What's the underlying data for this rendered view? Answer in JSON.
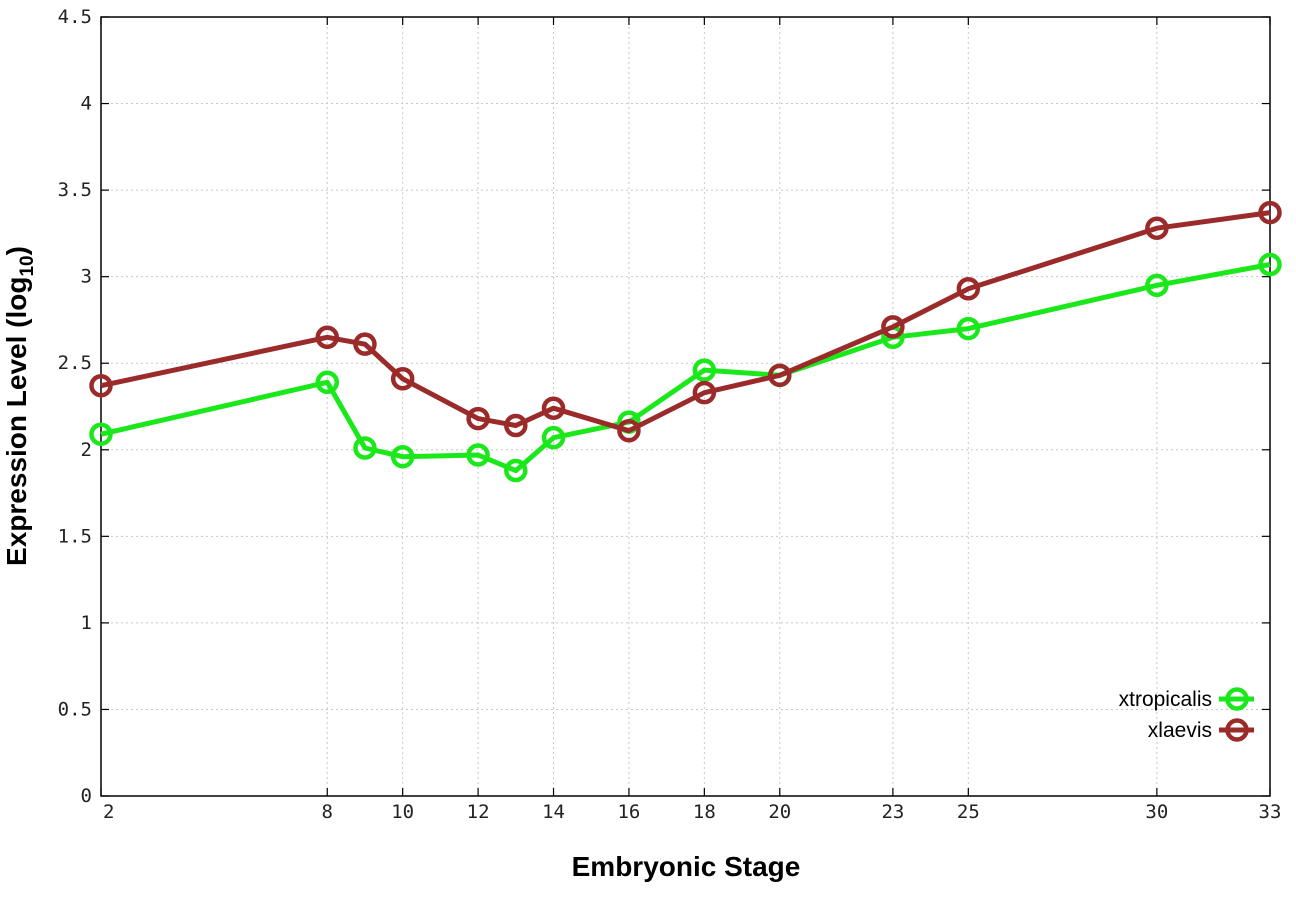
{
  "chart_data": {
    "type": "line",
    "xlabel": "Embryonic Stage",
    "ylabel_main": "Expression Level (log",
    "ylabel_sub": "10",
    "ylabel_end": ")",
    "xlim": [
      2,
      33
    ],
    "ylim": [
      0,
      4.5
    ],
    "grid": true,
    "legend_position": "bottom-right",
    "x_ticks": [
      "2",
      "8",
      "10",
      "12",
      "14",
      "16",
      "18",
      "20",
      "23",
      "25",
      "30",
      "33"
    ],
    "y_ticks": [
      "0",
      "0.5",
      "1",
      "1.5",
      "2",
      "2.5",
      "3",
      "3.5",
      "4",
      "4.5"
    ],
    "series": [
      {
        "name": "xtropicalis",
        "color": "#1be81b",
        "x": [
          2,
          8,
          9,
          10,
          12,
          13,
          14,
          16,
          18,
          20,
          23,
          25,
          30,
          33
        ],
        "values": [
          2.09,
          2.39,
          2.01,
          1.96,
          1.97,
          1.88,
          2.07,
          2.16,
          2.46,
          2.43,
          2.65,
          2.7,
          2.95,
          3.07
        ]
      },
      {
        "name": "xlaevis",
        "color": "#9b2b2b",
        "x": [
          2,
          8,
          9,
          10,
          12,
          13,
          14,
          16,
          18,
          20,
          23,
          25,
          30,
          33
        ],
        "values": [
          2.37,
          2.65,
          2.61,
          2.41,
          2.18,
          2.14,
          2.24,
          2.11,
          2.33,
          2.43,
          2.71,
          2.93,
          3.28,
          3.37
        ]
      }
    ]
  }
}
